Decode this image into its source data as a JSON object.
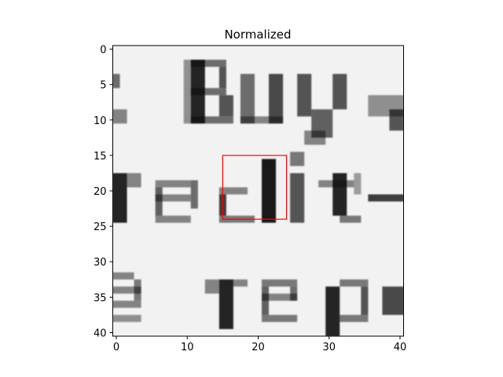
{
  "chart_data": {
    "type": "heatmap",
    "title": "Normalized",
    "xlabel": "",
    "ylabel": "",
    "colormap": "gray",
    "image_size": [
      41,
      41
    ],
    "xlim": [
      -0.5,
      40.5
    ],
    "ylim": [
      40.5,
      -0.5
    ],
    "x_ticks": [
      0,
      10,
      20,
      30,
      40
    ],
    "y_ticks": [
      0,
      5,
      10,
      15,
      20,
      25,
      30,
      35,
      40
    ],
    "grid": false,
    "image_content_text": "Buy / redit / e rep",
    "highlight_box": {
      "x0": 15,
      "y0": 15,
      "x1": 24,
      "y1": 24,
      "color": "#ff0000"
    }
  },
  "colors": {
    "background": "#ffffff",
    "paper": "#f2f2f2",
    "ink": "#111111",
    "box": "#ff0000"
  }
}
